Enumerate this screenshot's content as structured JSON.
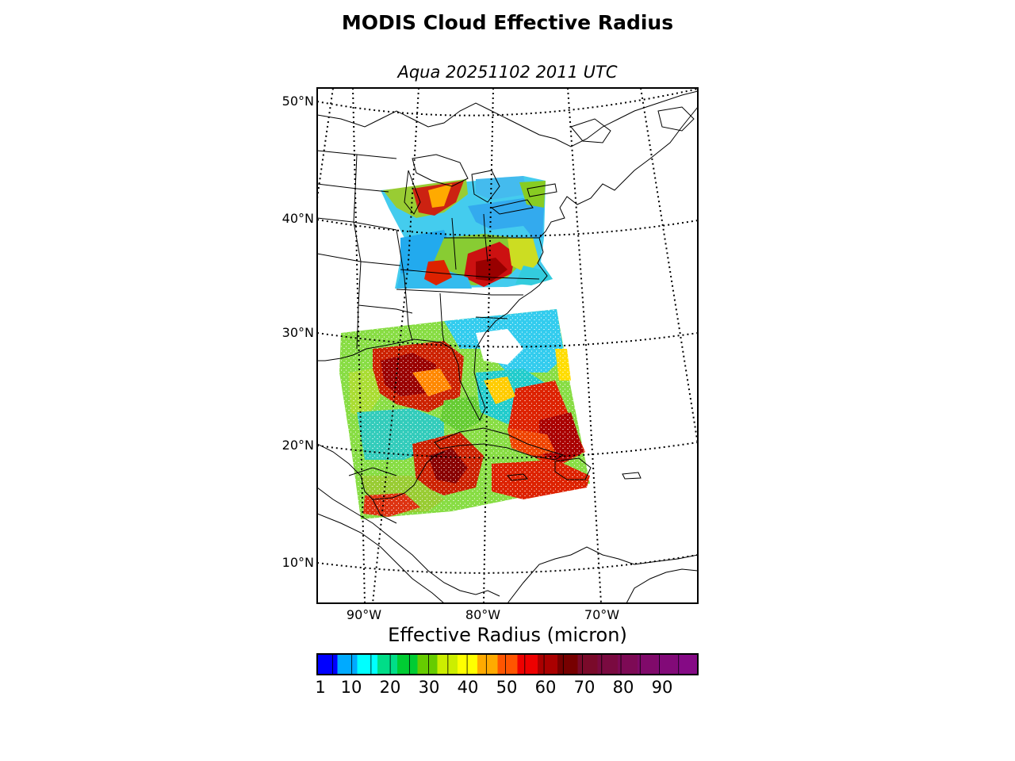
{
  "title": "MODIS Cloud Effective Radius",
  "subtitle": "Aqua 20251102 2011 UTC",
  "map": {
    "projection": "oblique conic (lat/lon graticule, dotted)",
    "lat_labels": [
      "50°N",
      "40°N",
      "30°N",
      "20°N",
      "10°N"
    ],
    "lon_labels": [
      "90°W",
      "80°W",
      "70°W"
    ],
    "graticule_style": "dotted",
    "coastline_color": "#000000",
    "no_data_color": "#ffffff"
  },
  "colorbar": {
    "label": "Effective Radius (micron)",
    "tick_labels": [
      "1",
      "10",
      "20",
      "30",
      "40",
      "50",
      "60",
      "70",
      "80",
      "90"
    ],
    "min": 1,
    "max": 100,
    "colors": [
      "#0000ff",
      "#00aaff",
      "#00ffff",
      "#00dd88",
      "#00cc33",
      "#66cc00",
      "#ccee00",
      "#ffff00",
      "#ffaa00",
      "#ff5500",
      "#ee0000",
      "#aa0000",
      "#770000",
      "#7a0a2a",
      "#7a0a40",
      "#7d0a55",
      "#800a6a",
      "#820a78",
      "#850a85"
    ]
  }
}
